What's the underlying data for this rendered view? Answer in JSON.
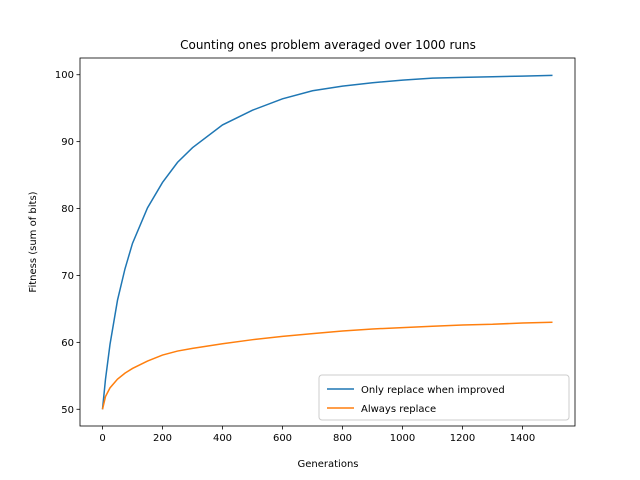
{
  "chart_data": {
    "type": "line",
    "title": "Counting ones problem averaged over 1000 runs",
    "xlabel": "Generations",
    "ylabel": "Fitness (sum of bits)",
    "xlim": [
      -75,
      1575
    ],
    "ylim": [
      47.5,
      102.5
    ],
    "xticks": [
      0,
      200,
      400,
      600,
      800,
      1000,
      1200,
      1400
    ],
    "yticks": [
      50,
      60,
      70,
      80,
      90,
      100
    ],
    "grid": false,
    "legend_position": "lower-right",
    "series": [
      {
        "name": "Only replace when improved",
        "color": "#1f77b4",
        "x": [
          0,
          10,
          25,
          50,
          75,
          100,
          150,
          200,
          250,
          300,
          400,
          500,
          600,
          700,
          800,
          900,
          1000,
          1100,
          1200,
          1300,
          1400,
          1500
        ],
        "y": [
          50.0,
          54.5,
          59.7,
          66.3,
          71.0,
          74.8,
          80.1,
          83.9,
          86.9,
          89.1,
          92.5,
          94.7,
          96.4,
          97.6,
          98.3,
          98.8,
          99.2,
          99.5,
          99.6,
          99.7,
          99.8,
          99.9
        ]
      },
      {
        "name": "Always replace",
        "color": "#ff7f0e",
        "x": [
          0,
          10,
          25,
          50,
          75,
          100,
          150,
          200,
          250,
          300,
          400,
          500,
          600,
          700,
          800,
          900,
          1000,
          1100,
          1200,
          1300,
          1400,
          1500
        ],
        "y": [
          50.0,
          51.9,
          53.2,
          54.5,
          55.4,
          56.1,
          57.2,
          58.1,
          58.7,
          59.1,
          59.8,
          60.4,
          60.9,
          61.3,
          61.7,
          62.0,
          62.2,
          62.4,
          62.6,
          62.7,
          62.9,
          63.0
        ]
      }
    ]
  }
}
